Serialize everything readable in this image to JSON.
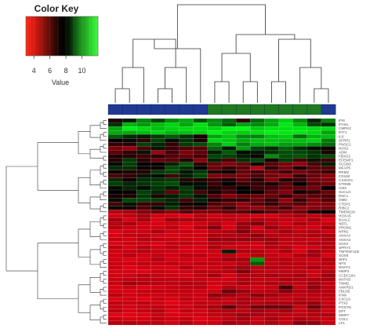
{
  "chart_data": {
    "type": "heatmap",
    "color_key": {
      "title": "Color Key",
      "ticks": [
        4,
        6,
        8,
        10
      ],
      "xlabel": "Value",
      "range": [
        3,
        12
      ],
      "colors": {
        "low": "#ff2a1a",
        "mid": "#000000",
        "high": "#33ff33"
      }
    },
    "sample_groups": [
      "blue",
      "blue",
      "blue",
      "blue",
      "blue",
      "blue",
      "blue",
      "green",
      "green",
      "green",
      "green",
      "green",
      "green",
      "green",
      "green",
      "blue"
    ],
    "group_colors": {
      "blue": "#1f3a93",
      "green": "#1f7a1f"
    },
    "genes": [
      "IFI6",
      "IFI44L",
      "CMPK2",
      "IFIT1",
      "IL6",
      "SFRP2",
      "PNOC1",
      "NOS2",
      "ADM",
      "FBXO2",
      "EFEMP1",
      "SCGB3",
      "MFAP5",
      "RRM2",
      "CD160",
      "CX3CR1",
      "STRM6",
      "CM3",
      "SUCLG",
      "ENC1",
      "OMD",
      "CTDP1",
      "RIBC2",
      "TMEM119",
      "HOXA5",
      "BAALC",
      "NEFL",
      "PROM1",
      "NRN2",
      "ANXA3",
      "ANXA3",
      "SOX2",
      "SPRY4",
      "TNFRSF11B",
      "SOX8",
      "WIF1",
      "NFS",
      "NNAT4",
      "MMP3",
      "CCDC18A",
      "MATN3",
      "TNMD",
      "ANKRD1",
      "FBLN5",
      "IFNK",
      "CXCL9",
      "PTX3",
      "POSTN",
      "DPT",
      "MMP7",
      "COL1",
      "LPL"
    ],
    "values": [
      [
        7.2,
        7.8,
        9.5,
        8.4,
        9.6,
        10.2,
        8.6,
        9.6,
        8.9,
        7.0,
        9.0,
        10.1,
        11.0,
        9.6,
        7.9,
        9.4
      ],
      [
        8.0,
        10.4,
        9.9,
        10.6,
        11.1,
        10.1,
        11.3,
        9.8,
        8.8,
        10.0,
        9.6,
        10.2,
        11.5,
        10.4,
        8.4,
        8.1
      ],
      [
        10.1,
        11.6,
        11.2,
        10.6,
        11.0,
        11.2,
        11.2,
        11.0,
        11.7,
        11.8,
        10.9,
        11.3,
        11.3,
        11.4,
        11.2,
        11.2
      ],
      [
        10.2,
        10.3,
        10.6,
        11.1,
        10.5,
        10.7,
        10.9,
        11.7,
        11.1,
        11.0,
        11.3,
        11.7,
        11.5,
        11.5,
        11.2,
        10.1
      ],
      [
        8.7,
        8.0,
        7.8,
        8.2,
        8.7,
        8.1,
        7.3,
        10.1,
        10.7,
        9.6,
        9.5,
        10.6,
        10.9,
        9.1,
        10.4,
        10.6
      ],
      [
        7.5,
        7.6,
        7.0,
        8.3,
        7.6,
        8.1,
        7.2,
        11.1,
        10.8,
        10.2,
        10.7,
        10.7,
        10.6,
        10.6,
        11.0,
        9.3
      ],
      [
        6.9,
        7.0,
        8.3,
        7.9,
        6.9,
        8.2,
        8.5,
        9.5,
        10.9,
        9.4,
        10.2,
        10.6,
        10.0,
        10.1,
        9.7,
        9.0
      ],
      [
        5.7,
        5.2,
        6.5,
        7.7,
        6.8,
        6.5,
        6.3,
        8.9,
        7.8,
        9.9,
        8.4,
        8.0,
        8.8,
        8.0,
        7.6,
        7.4
      ],
      [
        6.2,
        6.9,
        7.7,
        5.0,
        6.6,
        5.7,
        6.2,
        7.8,
        8.7,
        7.6,
        7.7,
        8.1,
        8.5,
        8.4,
        8.1,
        7.2
      ],
      [
        7.2,
        7.1,
        6.7,
        7.0,
        6.4,
        6.1,
        6.6,
        8.4,
        8.3,
        7.8,
        7.4,
        9.6,
        8.5,
        8.6,
        8.1,
        8.5
      ],
      [
        7.1,
        8.2,
        7.0,
        6.1,
        6.3,
        7.1,
        5.5,
        7.9,
        6.5,
        8.1,
        8.4,
        7.3,
        8.2,
        6.6,
        7.7,
        6.7
      ],
      [
        7.6,
        8.3,
        7.5,
        7.5,
        7.9,
        8.7,
        7.0,
        6.1,
        5.5,
        6.0,
        7.3,
        6.3,
        5.7,
        5.2,
        6.5,
        7.8
      ],
      [
        8.0,
        8.0,
        7.4,
        7.4,
        8.5,
        8.0,
        7.5,
        6.0,
        6.9,
        6.3,
        4.5,
        6.9,
        5.8,
        7.2,
        6.3,
        6.4
      ],
      [
        7.4,
        7.2,
        7.1,
        8.2,
        8.4,
        7.7,
        8.2,
        7.1,
        7.4,
        6.1,
        6.6,
        5.9,
        6.6,
        5.7,
        6.3,
        6.8
      ],
      [
        6.5,
        6.9,
        7.7,
        7.6,
        6.7,
        7.8,
        8.4,
        5.6,
        5.8,
        5.8,
        6.5,
        5.8,
        5.2,
        6.8,
        6.0,
        5.4
      ],
      [
        8.0,
        7.4,
        8.0,
        8.1,
        8.2,
        7.1,
        7.2,
        6.8,
        7.2,
        6.2,
        7.1,
        5.7,
        7.1,
        6.8,
        5.8,
        5.6
      ],
      [
        8.3,
        7.9,
        8.1,
        8.3,
        8.5,
        7.6,
        7.6,
        6.8,
        7.5,
        6.9,
        6.9,
        7.2,
        6.3,
        7.5,
        6.4,
        5.9
      ],
      [
        7.6,
        7.9,
        7.6,
        8.1,
        7.8,
        8.2,
        7.6,
        7.2,
        6.9,
        7.5,
        6.8,
        6.7,
        6.1,
        6.2,
        5.9,
        7.5
      ],
      [
        7.5,
        7.4,
        8.3,
        7.9,
        6.2,
        8.1,
        6.6,
        7.3,
        6.6,
        7.5,
        7.4,
        6.3,
        5.5,
        7.3,
        6.9,
        6.0
      ],
      [
        7.3,
        7.2,
        8.2,
        7.2,
        7.8,
        8.2,
        7.7,
        6.4,
        5.5,
        6.1,
        6.0,
        6.0,
        6.8,
        5.9,
        6.2,
        6.5
      ],
      [
        7.6,
        8.4,
        8.4,
        8.2,
        7.9,
        6.7,
        7.9,
        7.2,
        6.9,
        7.0,
        6.0,
        6.9,
        5.3,
        6.9,
        5.7,
        6.5
      ],
      [
        6.6,
        7.7,
        6.9,
        6.9,
        7.8,
        7.3,
        7.4,
        6.5,
        6.0,
        5.3,
        6.4,
        6.9,
        5.9,
        6.3,
        5.5,
        5.6
      ],
      [
        7.6,
        7.3,
        6.6,
        7.6,
        8.1,
        6.9,
        7.1,
        6.0,
        6.9,
        5.5,
        5.2,
        5.8,
        6.5,
        5.3,
        5.4,
        5.7
      ],
      [
        4.6,
        4.8,
        5.5,
        6.0,
        5.4,
        6.3,
        5.6,
        5.7,
        6.0,
        6.3,
        6.9,
        6.2,
        5.5,
        5.9,
        7.2,
        7.5
      ],
      [
        3.9,
        4.4,
        4.9,
        4.1,
        3.9,
        3.6,
        4.5,
        4.1,
        4.4,
        4.2,
        3.9,
        3.9,
        4.5,
        4.9,
        4.3,
        4.9
      ],
      [
        5.0,
        3.9,
        4.9,
        3.8,
        5.1,
        4.8,
        4.7,
        4.5,
        4.4,
        4.3,
        4.7,
        4.5,
        4.3,
        4.1,
        4.8,
        3.8
      ],
      [
        4.5,
        4.8,
        4.0,
        3.9,
        4.1,
        3.9,
        4.1,
        4.6,
        3.9,
        5.1,
        5.7,
        4.5,
        4.0,
        4.8,
        4.3,
        4.2
      ],
      [
        4.6,
        4.1,
        4.1,
        4.0,
        4.4,
        3.7,
        4.6,
        5.5,
        3.9,
        5.2,
        3.9,
        5.2,
        4.4,
        4.1,
        4.0,
        4.9
      ],
      [
        3.6,
        4.1,
        4.1,
        4.8,
        4.1,
        4.3,
        3.9,
        4.4,
        4.7,
        5.6,
        4.5,
        4.3,
        5.0,
        4.4,
        4.7,
        4.1
      ],
      [
        3.9,
        4.3,
        4.5,
        3.9,
        3.9,
        4.0,
        4.1,
        4.7,
        4.6,
        4.7,
        5.4,
        4.6,
        4.5,
        4.5,
        4.8,
        4.8
      ],
      [
        4.2,
        4.0,
        4.6,
        4.5,
        4.2,
        4.2,
        4.0,
        5.2,
        5.1,
        5.2,
        5.0,
        5.1,
        4.5,
        4.5,
        4.3,
        4.8
      ],
      [
        3.7,
        4.1,
        4.1,
        3.7,
        4.2,
        4.4,
        4.2,
        4.6,
        4.6,
        4.2,
        4.0,
        4.8,
        4.2,
        4.3,
        4.8,
        4.5
      ],
      [
        4.5,
        3.9,
        4.6,
        4.2,
        4.5,
        4.0,
        3.9,
        4.8,
        4.1,
        4.2,
        4.1,
        4.6,
        4.5,
        3.9,
        4.1,
        4.6
      ],
      [
        4.0,
        4.2,
        4.5,
        4.2,
        4.1,
        3.9,
        4.0,
        4.2,
        7.8,
        4.7,
        4.6,
        4.1,
        4.8,
        3.8,
        5.0,
        4.4
      ],
      [
        4.0,
        4.5,
        4.0,
        4.3,
        4.0,
        4.5,
        4.4,
        4.0,
        4.5,
        3.9,
        4.6,
        4.3,
        3.9,
        4.7,
        5.0,
        3.8
      ],
      [
        4.0,
        3.7,
        3.9,
        4.6,
        3.9,
        4.1,
        3.9,
        4.4,
        5.0,
        4.9,
        9.8,
        4.4,
        4.6,
        4.2,
        4.2,
        4.7
      ],
      [
        4.1,
        4.1,
        4.3,
        4.2,
        4.4,
        4.1,
        4.4,
        4.3,
        4.1,
        4.6,
        8.8,
        4.3,
        4.5,
        4.4,
        4.2,
        4.5
      ],
      [
        4.2,
        3.6,
        4.1,
        3.9,
        3.8,
        4.7,
        4.0,
        4.2,
        4.6,
        4.9,
        4.5,
        4.6,
        4.5,
        4.4,
        4.9,
        4.3
      ],
      [
        3.9,
        3.9,
        3.7,
        4.2,
        4.0,
        4.1,
        4.5,
        4.4,
        4.6,
        5.7,
        4.5,
        4.3,
        4.4,
        4.4,
        4.1,
        4.6
      ],
      [
        4.0,
        4.1,
        4.5,
        4.2,
        4.1,
        3.9,
        4.4,
        4.9,
        3.9,
        4.6,
        4.6,
        4.9,
        4.5,
        4.8,
        4.1,
        5.0
      ],
      [
        4.2,
        4.4,
        4.5,
        4.5,
        4.4,
        4.4,
        4.3,
        4.1,
        4.1,
        4.6,
        4.4,
        4.3,
        4.9,
        4.6,
        4.8,
        4.9
      ],
      [
        4.2,
        5.0,
        4.7,
        4.5,
        4.4,
        4.7,
        4.6,
        4.1,
        4.3,
        4.9,
        4.4,
        4.7,
        4.5,
        4.3,
        4.9,
        4.3
      ],
      [
        3.8,
        4.2,
        3.7,
        3.9,
        4.2,
        4.4,
        4.5,
        3.8,
        4.6,
        4.1,
        4.0,
        4.2,
        6.6,
        4.3,
        5.4,
        4.4
      ],
      [
        3.9,
        3.8,
        4.2,
        4.3,
        4.2,
        4.3,
        4.0,
        4.1,
        6.0,
        5.1,
        4.3,
        4.5,
        5.5,
        4.6,
        4.8,
        4.5
      ],
      [
        4.5,
        4.0,
        4.1,
        4.0,
        4.2,
        4.2,
        4.2,
        5.4,
        5.1,
        4.5,
        5.4,
        5.0,
        4.5,
        4.3,
        4.5,
        4.5
      ],
      [
        3.7,
        4.0,
        3.6,
        4.2,
        3.8,
        4.4,
        4.1,
        4.6,
        4.2,
        4.8,
        4.5,
        4.3,
        4.3,
        4.6,
        4.3,
        4.3
      ],
      [
        4.4,
        4.2,
        4.4,
        4.0,
        3.7,
        4.1,
        4.4,
        4.2,
        4.4,
        4.8,
        4.5,
        4.8,
        4.8,
        4.9,
        5.2,
        4.2
      ],
      [
        4.2,
        4.0,
        4.2,
        4.4,
        4.1,
        4.1,
        4.5,
        4.9,
        6.3,
        4.8,
        5.9,
        6.0,
        6.0,
        4.3,
        5.9,
        4.6
      ],
      [
        4.5,
        3.9,
        4.3,
        4.6,
        3.7,
        4.5,
        3.9,
        4.6,
        4.7,
        4.4,
        5.0,
        4.6,
        5.0,
        4.3,
        4.8,
        4.1
      ],
      [
        3.6,
        3.7,
        3.7,
        4.2,
        3.9,
        3.9,
        4.1,
        4.3,
        4.6,
        5.1,
        4.8,
        4.6,
        4.4,
        4.4,
        4.7,
        4.8
      ],
      [
        4.2,
        3.9,
        3.9,
        4.4,
        4.1,
        4.3,
        3.7,
        4.1,
        4.4,
        4.9,
        4.2,
        4.8,
        4.4,
        4.7,
        4.4,
        4.2
      ],
      [
        4.5,
        4.7,
        4.5,
        4.4,
        4.0,
        4.6,
        4.1,
        4.1,
        5.0,
        4.6,
        4.3,
        4.7,
        4.2,
        5.5,
        5.4,
        4.2
      ]
    ]
  }
}
